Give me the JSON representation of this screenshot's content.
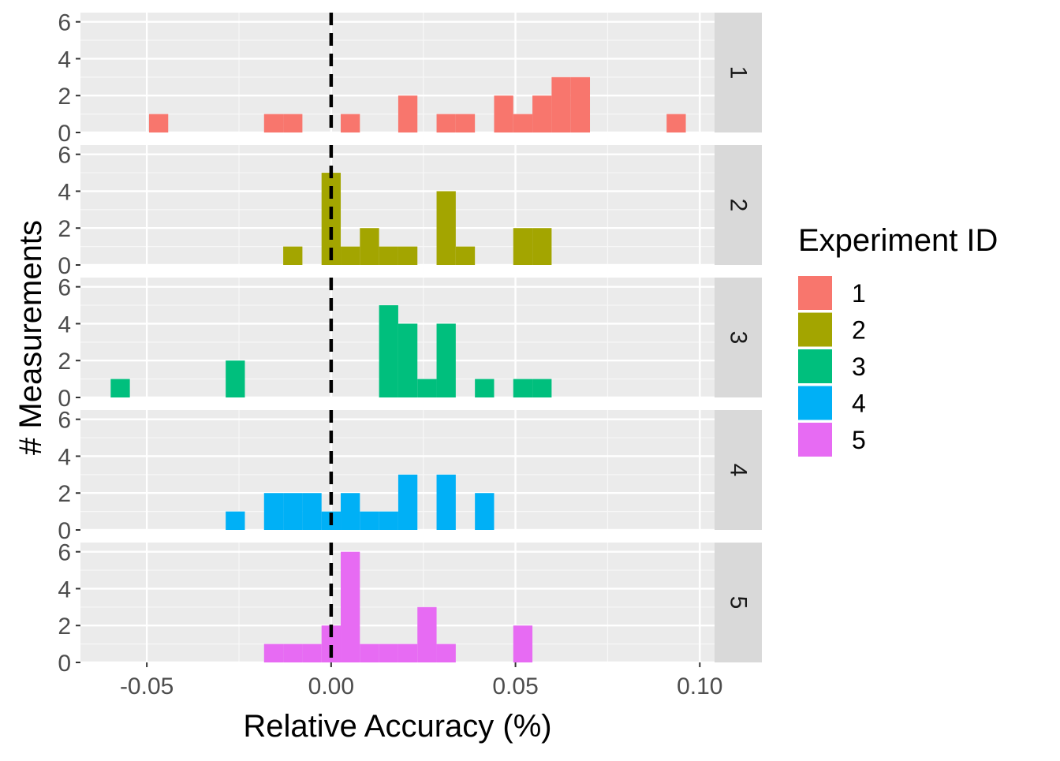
{
  "chart_data": {
    "type": "bar",
    "xlabel": "Relative Accuracy (%)",
    "ylabel": "# Measurements",
    "xlim": [
      -0.068,
      0.104
    ],
    "ylim": [
      0,
      6.5
    ],
    "x_ticks": [
      -0.05,
      0.0,
      0.05,
      0.1
    ],
    "x_tick_labels": [
      "-0.05",
      "0.00",
      "0.05",
      "0.10"
    ],
    "y_ticks": [
      0,
      2,
      4,
      6
    ],
    "y_tick_labels": [
      "0",
      "2",
      "4",
      "6"
    ],
    "bin_width": 0.0052,
    "reference_line": {
      "x": 0,
      "style": "dashed"
    },
    "legend": {
      "title": "Experiment ID",
      "position": "right",
      "items": [
        {
          "label": "1",
          "color": "#F8766D"
        },
        {
          "label": "2",
          "color": "#A3A500"
        },
        {
          "label": "3",
          "color": "#00BF7D"
        },
        {
          "label": "4",
          "color": "#00B0F6"
        },
        {
          "label": "5",
          "color": "#E76BF3"
        }
      ]
    },
    "panels": [
      {
        "strip": "1",
        "color": "#F8766D",
        "bins": [
          {
            "x": -0.0468,
            "count": 1
          },
          {
            "x": -0.0156,
            "count": 1
          },
          {
            "x": -0.0104,
            "count": 1
          },
          {
            "x": 0.0052,
            "count": 1
          },
          {
            "x": 0.0208,
            "count": 2
          },
          {
            "x": 0.0312,
            "count": 1
          },
          {
            "x": 0.0364,
            "count": 1
          },
          {
            "x": 0.0468,
            "count": 2
          },
          {
            "x": 0.052,
            "count": 1
          },
          {
            "x": 0.0572,
            "count": 2
          },
          {
            "x": 0.0624,
            "count": 3
          },
          {
            "x": 0.0676,
            "count": 3
          },
          {
            "x": 0.0936,
            "count": 1
          }
        ]
      },
      {
        "strip": "2",
        "color": "#A3A500",
        "bins": [
          {
            "x": -0.0104,
            "count": 1
          },
          {
            "x": 0.0,
            "count": 5
          },
          {
            "x": 0.0052,
            "count": 1
          },
          {
            "x": 0.0104,
            "count": 2
          },
          {
            "x": 0.0156,
            "count": 1
          },
          {
            "x": 0.0208,
            "count": 1
          },
          {
            "x": 0.0312,
            "count": 4
          },
          {
            "x": 0.0364,
            "count": 1
          },
          {
            "x": 0.052,
            "count": 2
          },
          {
            "x": 0.0572,
            "count": 2
          }
        ]
      },
      {
        "strip": "3",
        "color": "#00BF7D",
        "bins": [
          {
            "x": -0.0572,
            "count": 1
          },
          {
            "x": -0.026,
            "count": 2
          },
          {
            "x": 0.0156,
            "count": 5
          },
          {
            "x": 0.0208,
            "count": 4
          },
          {
            "x": 0.026,
            "count": 1
          },
          {
            "x": 0.0312,
            "count": 4
          },
          {
            "x": 0.0416,
            "count": 1
          },
          {
            "x": 0.052,
            "count": 1
          },
          {
            "x": 0.0572,
            "count": 1
          }
        ]
      },
      {
        "strip": "4",
        "color": "#00B0F6",
        "bins": [
          {
            "x": -0.026,
            "count": 1
          },
          {
            "x": -0.0156,
            "count": 2
          },
          {
            "x": -0.0104,
            "count": 2
          },
          {
            "x": -0.0052,
            "count": 2
          },
          {
            "x": 0.0,
            "count": 1
          },
          {
            "x": 0.0052,
            "count": 2
          },
          {
            "x": 0.0104,
            "count": 1
          },
          {
            "x": 0.0156,
            "count": 1
          },
          {
            "x": 0.0208,
            "count": 3
          },
          {
            "x": 0.0312,
            "count": 3
          },
          {
            "x": 0.0416,
            "count": 2
          }
        ]
      },
      {
        "strip": "5",
        "color": "#E76BF3",
        "bins": [
          {
            "x": -0.0156,
            "count": 1
          },
          {
            "x": -0.0104,
            "count": 1
          },
          {
            "x": -0.0052,
            "count": 1
          },
          {
            "x": 0.0,
            "count": 2
          },
          {
            "x": 0.0052,
            "count": 6
          },
          {
            "x": 0.0104,
            "count": 1
          },
          {
            "x": 0.0156,
            "count": 1
          },
          {
            "x": 0.0208,
            "count": 1
          },
          {
            "x": 0.026,
            "count": 3
          },
          {
            "x": 0.0312,
            "count": 1
          },
          {
            "x": 0.052,
            "count": 2
          }
        ]
      }
    ]
  }
}
